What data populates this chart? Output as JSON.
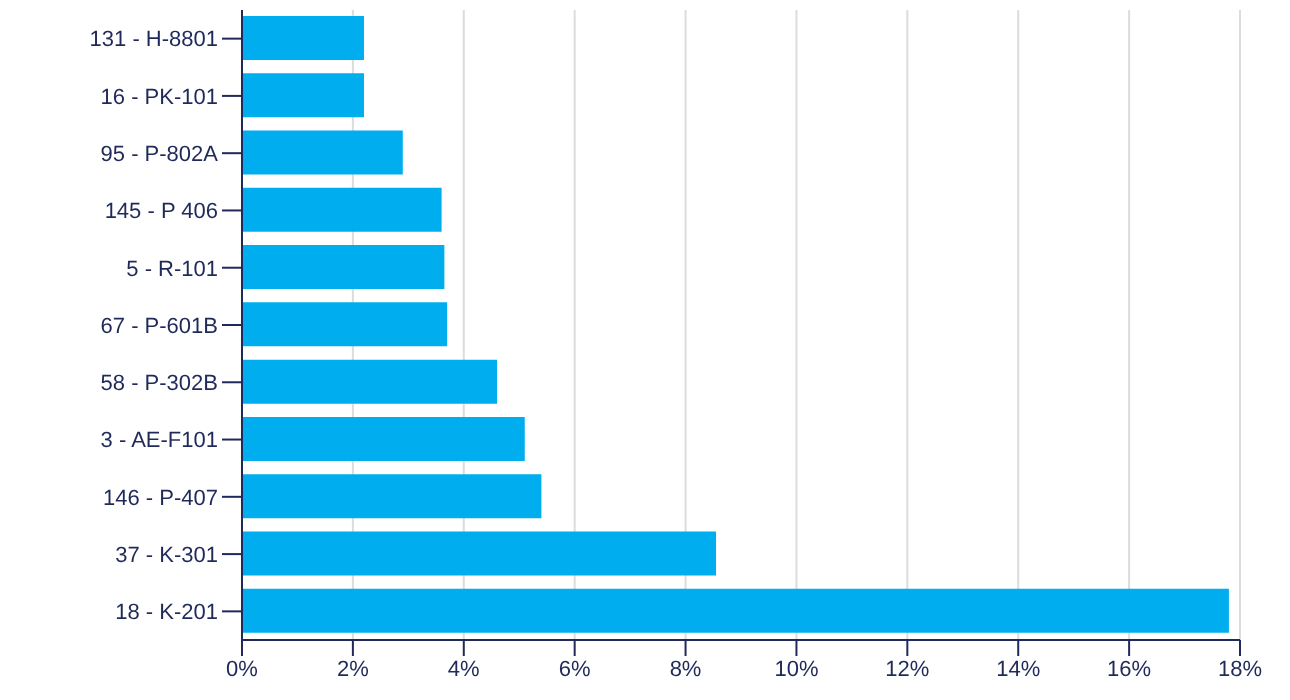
{
  "chart_data": {
    "type": "bar",
    "orientation": "horizontal",
    "categories": [
      "131 - H-8801",
      "16 - PK-101",
      "95 - P-802A",
      "145 - P 406",
      "5 - R-101",
      "67 - P-601B",
      "58 - P-302B",
      "3 - AE-F101",
      "146 - P-407",
      "37 - K-301",
      "18 - K-201"
    ],
    "values": [
      2.2,
      2.2,
      2.9,
      3.6,
      3.65,
      3.7,
      4.6,
      5.1,
      5.4,
      8.55,
      17.8
    ],
    "color": "#00aeef",
    "xlim": [
      0,
      18
    ],
    "xticks": [
      {
        "value": 0,
        "label": "0%"
      },
      {
        "value": 2,
        "label": "2%"
      },
      {
        "value": 4,
        "label": "4%"
      },
      {
        "value": 6,
        "label": "6%"
      },
      {
        "value": 8,
        "label": "8%"
      },
      {
        "value": 10,
        "label": "10%"
      },
      {
        "value": 12,
        "label": "12%"
      },
      {
        "value": 14,
        "label": "14%"
      },
      {
        "value": 16,
        "label": "16%"
      },
      {
        "value": 18,
        "label": "18%"
      }
    ],
    "grid": "x",
    "legend": false
  }
}
